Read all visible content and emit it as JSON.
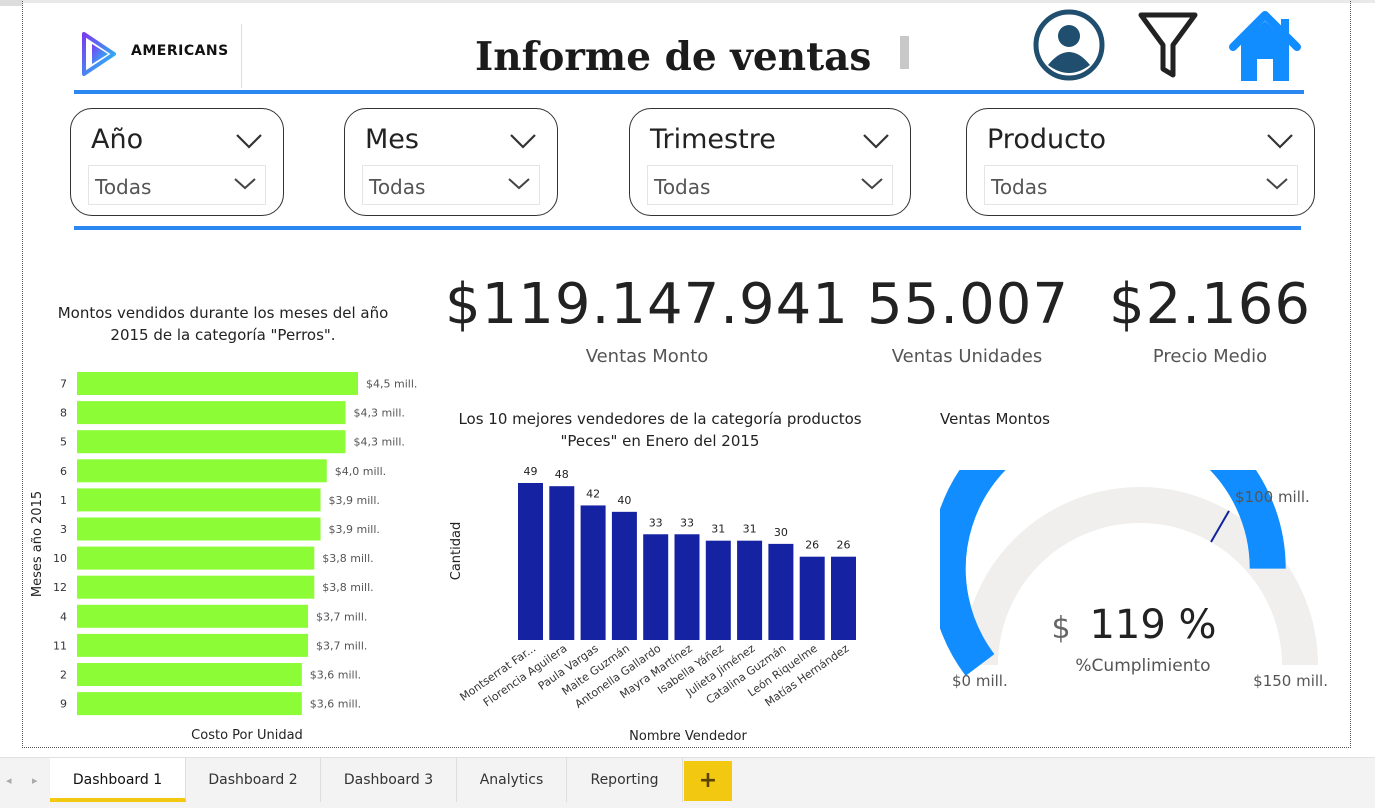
{
  "header": {
    "logo_text": "AMERICANS",
    "title": "Informe de ventas",
    "icons": [
      "user-icon",
      "filter-icon",
      "home-icon"
    ],
    "accent": "#2b88f2"
  },
  "slicers": [
    {
      "label": "Año",
      "value": "Todas"
    },
    {
      "label": "Mes",
      "value": "Todas"
    },
    {
      "label": "Trimestre",
      "value": "Todas"
    },
    {
      "label": "Producto",
      "value": "Todas"
    }
  ],
  "kpis": [
    {
      "value": "$119.147.941",
      "label": "Ventas Monto"
    },
    {
      "value": "55.007",
      "label": "Ventas Unidades"
    },
    {
      "value": "$2.166",
      "label": "Precio Medio"
    }
  ],
  "chart_data": [
    {
      "type": "bar",
      "orientation": "horizontal",
      "title": "Montos vendidos durante los meses del año 2015 de la categoría \"Perros\".",
      "xlabel": "Costo Por Unidad",
      "ylabel": "Meses año 2015",
      "categories": [
        "7",
        "8",
        "5",
        "6",
        "1",
        "3",
        "10",
        "12",
        "4",
        "11",
        "2",
        "9"
      ],
      "values": [
        4.5,
        4.3,
        4.3,
        4.0,
        3.9,
        3.9,
        3.8,
        3.8,
        3.7,
        3.7,
        3.6,
        3.6
      ],
      "data_labels": [
        "$4,5 mill.",
        "$4,3 mill.",
        "$4,3 mill.",
        "$4,0 mill.",
        "$3,9 mill.",
        "$3,9 mill.",
        "$3,8 mill.",
        "$3,8 mill.",
        "$3,7 mill.",
        "$3,7 mill.",
        "$3,6 mill.",
        "$3,6 mill."
      ],
      "color": "#8cfc36"
    },
    {
      "type": "bar",
      "title": "Los 10 mejores vendedores de la categoría productos \"Peces\" en Enero del 2015",
      "xlabel": "Nombre Vendedor",
      "ylabel": "Cantidad",
      "categories": [
        "Montserrat Far...",
        "Florencia Aguilera",
        "Paula Vargas",
        "Maite Guzmán",
        "Antonella Gallardo",
        "Mayra Martínez",
        "Isabella Yáñez",
        "Julieta Jiménez",
        "Catalina Guzmán",
        "León Riquelme",
        "Matías Hernández"
      ],
      "values": [
        49,
        48,
        42,
        40,
        33,
        33,
        31,
        31,
        30,
        26,
        26
      ],
      "color": "#1523a3"
    },
    {
      "type": "gauge",
      "title": "Ventas Montos",
      "min_label": "$0 mill.",
      "max_label": "$150 mill.",
      "target_label": "$100 mill.",
      "min": 0,
      "max": 150,
      "target": 100,
      "value": 119.147941,
      "center_prefix": "$",
      "center_value": "119 %",
      "center_label": "%Cumplimiento",
      "fill_color": "#118dff",
      "track_color": "#f0efee",
      "target_color": "#12239e"
    }
  ],
  "tabs": [
    "Dashboard 1",
    "Dashboard 2",
    "Dashboard 3",
    "Analytics",
    "Reporting"
  ],
  "tab_add": "+",
  "tab_nav": [
    "◂",
    "▸"
  ]
}
